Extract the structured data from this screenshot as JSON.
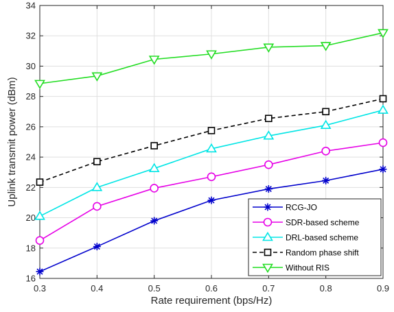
{
  "chart_data": {
    "type": "line",
    "xlabel": "Rate requirement (bps/Hz)",
    "ylabel": "Uplink transmit power (dBm)",
    "xlim": [
      0.3,
      0.9
    ],
    "ylim": [
      16,
      34
    ],
    "x": [
      0.3,
      0.4,
      0.5,
      0.6,
      0.7,
      0.8,
      0.9
    ],
    "x_tick_labels": [
      "0.3",
      "0.4",
      "0.5",
      "0.6",
      "0.7",
      "0.8",
      "0.9"
    ],
    "y_ticks": [
      16,
      18,
      20,
      22,
      24,
      26,
      28,
      30,
      32,
      34
    ],
    "y_tick_labels": [
      "16",
      "18",
      "20",
      "22",
      "24",
      "26",
      "28",
      "30",
      "32",
      "34"
    ],
    "grid": true,
    "legend_position": "bottom-right",
    "series": [
      {
        "name": "RCG-JO",
        "values": [
          16.45,
          18.1,
          19.8,
          21.15,
          21.9,
          22.45,
          23.2
        ],
        "color": "#0000cc",
        "marker": "asterisk",
        "dash": "solid"
      },
      {
        "name": "SDR-based scheme",
        "values": [
          18.5,
          20.75,
          21.95,
          22.7,
          23.5,
          24.4,
          24.95
        ],
        "color": "#e600e6",
        "marker": "circle",
        "dash": "solid"
      },
      {
        "name": "DRL-based scheme",
        "values": [
          20.1,
          22.0,
          23.25,
          24.55,
          25.4,
          26.1,
          27.1
        ],
        "color": "#00e5e5",
        "marker": "triangle-up",
        "dash": "solid"
      },
      {
        "name": "Random phase shift",
        "values": [
          22.35,
          23.7,
          24.75,
          25.75,
          26.55,
          27.0,
          27.85
        ],
        "color": "#000000",
        "marker": "square",
        "dash": "dashed"
      },
      {
        "name": "Without RIS",
        "values": [
          28.85,
          29.35,
          30.45,
          30.8,
          31.25,
          31.35,
          32.2
        ],
        "color": "#22dd22",
        "marker": "triangle-down",
        "dash": "solid"
      }
    ]
  }
}
